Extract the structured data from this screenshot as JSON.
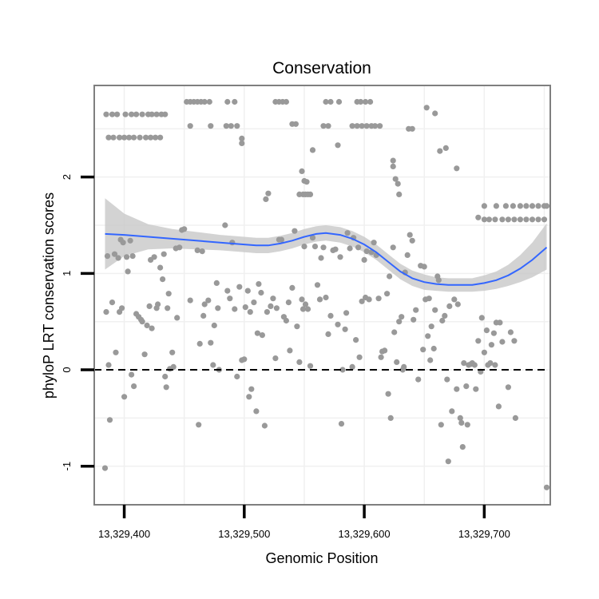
{
  "chart_data": {
    "type": "scatter",
    "title": "Conservation",
    "xlabel": "Genomic Position",
    "ylabel": "phyloP LRT conservation scores",
    "xlim": [
      13329375,
      13329755
    ],
    "ylim": [
      -1.4,
      2.95
    ],
    "x_ticks": [
      13329400,
      13329500,
      13329600,
      13329700
    ],
    "x_tick_labels": [
      "13,329,400",
      "13,329,500",
      "13,329,600",
      "13,329,700"
    ],
    "y_ticks": [
      -1,
      0,
      1,
      2
    ],
    "y_tick_labels": [
      "-1",
      "0",
      "1",
      "2"
    ],
    "grid": true,
    "reference_line": {
      "y": 0,
      "style": "dashed"
    },
    "colors": {
      "points": "#999999",
      "smooth_line": "#3366ff",
      "confidence_band": "#c8c8c8",
      "panel_border": "#7f7f7f",
      "grid": "#f0f0f0"
    },
    "points": [
      [
        13329384,
        -1.02
      ],
      [
        13329385,
        0.6
      ],
      [
        13329386,
        1.18
      ],
      [
        13329387,
        0.05
      ],
      [
        13329388,
        -0.52
      ],
      [
        13329390,
        0.7
      ],
      [
        13329392,
        1.2
      ],
      [
        13329393,
        0.18
      ],
      [
        13329395,
        1.16
      ],
      [
        13329396,
        0.6
      ],
      [
        13329397,
        1.35
      ],
      [
        13329398,
        0.64
      ],
      [
        13329399,
        1.32
      ],
      [
        13329400,
        -0.28
      ],
      [
        13329402,
        1.17
      ],
      [
        13329403,
        1.02
      ],
      [
        13329405,
        1.34
      ],
      [
        13329406,
        -0.05
      ],
      [
        13329407,
        1.18
      ],
      [
        13329408,
        -0.17
      ],
      [
        13329410,
        0.58
      ],
      [
        13329412,
        0.55
      ],
      [
        13329414,
        0.52
      ],
      [
        13329415,
        0.5
      ],
      [
        13329417,
        0.16
      ],
      [
        13329419,
        0.46
      ],
      [
        13329421,
        0.66
      ],
      [
        13329422,
        1.14
      ],
      [
        13329423,
        0.43
      ],
      [
        13329425,
        1.17
      ],
      [
        13329427,
        0.64
      ],
      [
        13329428,
        0.68
      ],
      [
        13329430,
        1.06
      ],
      [
        13329432,
        0.94
      ],
      [
        13329433,
        1.2
      ],
      [
        13329434,
        -0.07
      ],
      [
        13329435,
        -0.18
      ],
      [
        13329436,
        0.64
      ],
      [
        13329437,
        0.79
      ],
      [
        13329438,
        0.01
      ],
      [
        13329440,
        0.18
      ],
      [
        13329441,
        0.03
      ],
      [
        13329443,
        1.26
      ],
      [
        13329444,
        0.54
      ],
      [
        13329446,
        1.27
      ],
      [
        13329448,
        1.45
      ],
      [
        13329450,
        1.46
      ],
      [
        13329455,
        0.72
      ],
      [
        13329461,
        1.24
      ],
      [
        13329462,
        -0.57
      ],
      [
        13329463,
        0.27
      ],
      [
        13329465,
        1.23
      ],
      [
        13329466,
        0.56
      ],
      [
        13329467,
        0.68
      ],
      [
        13329470,
        0.72
      ],
      [
        13329472,
        0.28
      ],
      [
        13329474,
        0.05
      ],
      [
        13329475,
        0.46
      ],
      [
        13329477,
        0.9
      ],
      [
        13329478,
        0.64
      ],
      [
        13329479,
        0.0
      ],
      [
        13329484,
        1.5
      ],
      [
        13329486,
        0.82
      ],
      [
        13329488,
        0.74
      ],
      [
        13329490,
        1.32
      ],
      [
        13329492,
        0.63
      ],
      [
        13329494,
        -0.07
      ],
      [
        13329496,
        0.86
      ],
      [
        13329498,
        0.1
      ],
      [
        13329500,
        0.11
      ],
      [
        13329501,
        0.65
      ],
      [
        13329503,
        0.82
      ],
      [
        13329504,
        -0.28
      ],
      [
        13329505,
        0.6
      ],
      [
        13329506,
        -0.2
      ],
      [
        13329508,
        0.7
      ],
      [
        13329510,
        -0.43
      ],
      [
        13329511,
        0.38
      ],
      [
        13329512,
        0.89
      ],
      [
        13329514,
        0.8
      ],
      [
        13329515,
        0.36
      ],
      [
        13329517,
        -0.58
      ],
      [
        13329518,
        1.77
      ],
      [
        13329519,
        0.6
      ],
      [
        13329520,
        1.83
      ],
      [
        13329522,
        0.66
      ],
      [
        13329524,
        0.74
      ],
      [
        13329526,
        0.12
      ],
      [
        13329527,
        0.64
      ],
      [
        13329529,
        1.35
      ],
      [
        13329531,
        1.35
      ],
      [
        13329533,
        0.55
      ],
      [
        13329535,
        0.51
      ],
      [
        13329537,
        0.7
      ],
      [
        13329538,
        0.2
      ],
      [
        13329540,
        0.85
      ],
      [
        13329542,
        1.44
      ],
      [
        13329544,
        0.45
      ],
      [
        13329546,
        0.08
      ],
      [
        13329548,
        0.73
      ],
      [
        13329549,
        0.63
      ],
      [
        13329550,
        1.28
      ],
      [
        13329551,
        0.68
      ],
      [
        13329553,
        0.63
      ],
      [
        13329555,
        0.04
      ],
      [
        13329557,
        1.37
      ],
      [
        13329559,
        1.28
      ],
      [
        13329561,
        0.88
      ],
      [
        13329563,
        0.73
      ],
      [
        13329564,
        1.16
      ],
      [
        13329566,
        1.27
      ],
      [
        13329568,
        0.75
      ],
      [
        13329570,
        0.37
      ],
      [
        13329572,
        0.56
      ],
      [
        13329574,
        1.24
      ],
      [
        13329576,
        1.25
      ],
      [
        13329578,
        0.47
      ],
      [
        13329580,
        1.17
      ],
      [
        13329581,
        -0.56
      ],
      [
        13329582,
        0.0
      ],
      [
        13329584,
        0.42
      ],
      [
        13329585,
        0.59
      ],
      [
        13329586,
        1.42
      ],
      [
        13329588,
        1.26
      ],
      [
        13329590,
        0.03
      ],
      [
        13329591,
        1.37
      ],
      [
        13329593,
        0.31
      ],
      [
        13329595,
        1.27
      ],
      [
        13329596,
        0.13
      ],
      [
        13329598,
        0.71
      ],
      [
        13329600,
        1.14
      ],
      [
        13329601,
        0.75
      ],
      [
        13329602,
        1.23
      ],
      [
        13329604,
        0.73
      ],
      [
        13329606,
        1.22
      ],
      [
        13329608,
        1.32
      ],
      [
        13329610,
        1.19
      ],
      [
        13329612,
        0.74
      ],
      [
        13329614,
        0.13
      ],
      [
        13329615,
        0.19
      ],
      [
        13329617,
        0.2
      ],
      [
        13329619,
        0.79
      ],
      [
        13329620,
        -0.25
      ],
      [
        13329621,
        0.97
      ],
      [
        13329622,
        -0.5
      ],
      [
        13329624,
        1.27
      ],
      [
        13329625,
        0.39
      ],
      [
        13329627,
        0.08
      ],
      [
        13329629,
        0.5
      ],
      [
        13329631,
        0.55
      ],
      [
        13329632,
        0.0
      ],
      [
        13329633,
        0.03
      ],
      [
        13329634,
        1.01
      ],
      [
        13329636,
        1.19
      ],
      [
        13329638,
        1.4
      ],
      [
        13329640,
        1.34
      ],
      [
        13329641,
        0.52
      ],
      [
        13329643,
        0.62
      ],
      [
        13329645,
        -0.1
      ],
      [
        13329647,
        1.08
      ],
      [
        13329649,
        0.21
      ],
      [
        13329650,
        1.07
      ],
      [
        13329651,
        0.73
      ],
      [
        13329653,
        0.35
      ],
      [
        13329654,
        0.74
      ],
      [
        13329655,
        0.1
      ],
      [
        13329656,
        0.45
      ],
      [
        13329658,
        0.22
      ],
      [
        13329659,
        0.62
      ],
      [
        13329661,
        0.97
      ],
      [
        13329662,
        0.93
      ],
      [
        13329664,
        -0.57
      ],
      [
        13329665,
        0.51
      ],
      [
        13329667,
        0.56
      ],
      [
        13329669,
        -0.1
      ],
      [
        13329670,
        -0.95
      ],
      [
        13329671,
        0.66
      ],
      [
        13329673,
        -0.43
      ],
      [
        13329675,
        0.73
      ],
      [
        13329677,
        -0.2
      ],
      [
        13329678,
        0.68
      ],
      [
        13329680,
        -0.5
      ],
      [
        13329681,
        -0.55
      ],
      [
        13329682,
        -0.8
      ],
      [
        13329683,
        0.07
      ],
      [
        13329685,
        -0.17
      ],
      [
        13329686,
        -0.57
      ],
      [
        13329687,
        0.05
      ],
      [
        13329689,
        0.06
      ],
      [
        13329690,
        0.07
      ],
      [
        13329692,
        0.05
      ],
      [
        13329693,
        -0.2
      ],
      [
        13329695,
        0.3
      ],
      [
        13329697,
        -0.02
      ],
      [
        13329698,
        0.54
      ],
      [
        13329700,
        0.18
      ],
      [
        13329702,
        0.41
      ],
      [
        13329703,
        0.05
      ],
      [
        13329705,
        0.07
      ],
      [
        13329706,
        0.26
      ],
      [
        13329708,
        0.38
      ],
      [
        13329709,
        0.05
      ],
      [
        13329710,
        0.49
      ],
      [
        13329712,
        -0.38
      ],
      [
        13329713,
        0.49
      ],
      [
        13329715,
        0.29
      ],
      [
        13329720,
        -0.18
      ],
      [
        13329722,
        0.39
      ],
      [
        13329725,
        0.3
      ],
      [
        13329726,
        -0.5
      ],
      [
        13329752,
        -1.22
      ],
      [
        13329385,
        2.65
      ],
      [
        13329390,
        2.65
      ],
      [
        13329394,
        2.65
      ],
      [
        13329401,
        2.65
      ],
      [
        13329406,
        2.65
      ],
      [
        13329410,
        2.65
      ],
      [
        13329415,
        2.65
      ],
      [
        13329420,
        2.65
      ],
      [
        13329423,
        2.65
      ],
      [
        13329427,
        2.65
      ],
      [
        13329431,
        2.65
      ],
      [
        13329434,
        2.65
      ],
      [
        13329387,
        2.41
      ],
      [
        13329391,
        2.41
      ],
      [
        13329396,
        2.41
      ],
      [
        13329400,
        2.41
      ],
      [
        13329404,
        2.41
      ],
      [
        13329408,
        2.41
      ],
      [
        13329413,
        2.41
      ],
      [
        13329418,
        2.41
      ],
      [
        13329422,
        2.41
      ],
      [
        13329426,
        2.41
      ],
      [
        13329430,
        2.41
      ],
      [
        13329452,
        2.78
      ],
      [
        13329455,
        2.78
      ],
      [
        13329458,
        2.78
      ],
      [
        13329461,
        2.78
      ],
      [
        13329464,
        2.78
      ],
      [
        13329467,
        2.78
      ],
      [
        13329471,
        2.78
      ],
      [
        13329486,
        2.78
      ],
      [
        13329492,
        2.78
      ],
      [
        13329526,
        2.78
      ],
      [
        13329529,
        2.78
      ],
      [
        13329532,
        2.78
      ],
      [
        13329535,
        2.78
      ],
      [
        13329568,
        2.78
      ],
      [
        13329572,
        2.78
      ],
      [
        13329579,
        2.78
      ],
      [
        13329594,
        2.78
      ],
      [
        13329597,
        2.78
      ],
      [
        13329601,
        2.78
      ],
      [
        13329605,
        2.78
      ],
      [
        13329455,
        2.53
      ],
      [
        13329472,
        2.53
      ],
      [
        13329485,
        2.53
      ],
      [
        13329489,
        2.53
      ],
      [
        13329494,
        2.53
      ],
      [
        13329566,
        2.53
      ],
      [
        13329570,
        2.53
      ],
      [
        13329590,
        2.53
      ],
      [
        13329594,
        2.53
      ],
      [
        13329598,
        2.53
      ],
      [
        13329602,
        2.53
      ],
      [
        13329606,
        2.53
      ],
      [
        13329609,
        2.53
      ],
      [
        13329613,
        2.53
      ],
      [
        13329498,
        2.35
      ],
      [
        13329498,
        2.4
      ],
      [
        13329578,
        2.33
      ],
      [
        13329557,
        2.28
      ],
      [
        13329540,
        2.55
      ],
      [
        13329543,
        2.55
      ],
      [
        13329637,
        2.5
      ],
      [
        13329640,
        2.5
      ],
      [
        13329652,
        2.72
      ],
      [
        13329659,
        2.66
      ],
      [
        13329663,
        2.27
      ],
      [
        13329668,
        2.3
      ],
      [
        13329677,
        2.09
      ],
      [
        13329624,
        2.17
      ],
      [
        13329624,
        2.11
      ],
      [
        13329626,
        1.98
      ],
      [
        13329628,
        1.93
      ],
      [
        13329629,
        1.82
      ],
      [
        13329548,
        2.06
      ],
      [
        13329550,
        1.96
      ],
      [
        13329552,
        1.95
      ],
      [
        13329546,
        1.82
      ],
      [
        13329549,
        1.82
      ],
      [
        13329551,
        1.82
      ],
      [
        13329553,
        1.82
      ],
      [
        13329555,
        1.82
      ],
      [
        13329695,
        1.58
      ],
      [
        13329700,
        1.56
      ],
      [
        13329704,
        1.56
      ],
      [
        13329709,
        1.56
      ],
      [
        13329715,
        1.56
      ],
      [
        13329720,
        1.56
      ],
      [
        13329725,
        1.56
      ],
      [
        13329730,
        1.56
      ],
      [
        13329735,
        1.56
      ],
      [
        13329740,
        1.56
      ],
      [
        13329745,
        1.56
      ],
      [
        13329750,
        1.56
      ],
      [
        13329700,
        1.7
      ],
      [
        13329710,
        1.7
      ],
      [
        13329718,
        1.7
      ],
      [
        13329724,
        1.7
      ],
      [
        13329730,
        1.7
      ],
      [
        13329735,
        1.7
      ],
      [
        13329740,
        1.7
      ],
      [
        13329745,
        1.7
      ],
      [
        13329750,
        1.7
      ],
      [
        13329752,
        1.7
      ]
    ],
    "smooth": {
      "x": [
        13329384,
        13329400,
        13329420,
        13329440,
        13329460,
        13329480,
        13329500,
        13329510,
        13329520,
        13329530,
        13329540,
        13329550,
        13329560,
        13329568,
        13329580,
        13329590,
        13329600,
        13329610,
        13329620,
        13329630,
        13329640,
        13329650,
        13329660,
        13329670,
        13329680,
        13329690,
        13329700,
        13329710,
        13329720,
        13329730,
        13329740,
        13329752
      ],
      "y": [
        1.41,
        1.4,
        1.38,
        1.36,
        1.34,
        1.32,
        1.3,
        1.29,
        1.29,
        1.31,
        1.34,
        1.38,
        1.41,
        1.42,
        1.4,
        1.36,
        1.3,
        1.22,
        1.12,
        1.02,
        0.95,
        0.91,
        0.89,
        0.88,
        0.88,
        0.88,
        0.9,
        0.93,
        0.98,
        1.05,
        1.14,
        1.27
      ],
      "lower": [
        1.04,
        1.18,
        1.25,
        1.26,
        1.25,
        1.24,
        1.22,
        1.21,
        1.21,
        1.23,
        1.26,
        1.3,
        1.33,
        1.34,
        1.32,
        1.28,
        1.22,
        1.14,
        1.04,
        0.94,
        0.87,
        0.83,
        0.82,
        0.81,
        0.81,
        0.81,
        0.82,
        0.84,
        0.87,
        0.91,
        0.96,
        1.04
      ],
      "upper": [
        1.78,
        1.62,
        1.51,
        1.46,
        1.43,
        1.4,
        1.38,
        1.37,
        1.37,
        1.39,
        1.42,
        1.46,
        1.49,
        1.5,
        1.48,
        1.44,
        1.38,
        1.3,
        1.2,
        1.1,
        1.03,
        0.99,
        0.96,
        0.95,
        0.95,
        0.95,
        0.98,
        1.02,
        1.09,
        1.19,
        1.32,
        1.52
      ]
    }
  }
}
